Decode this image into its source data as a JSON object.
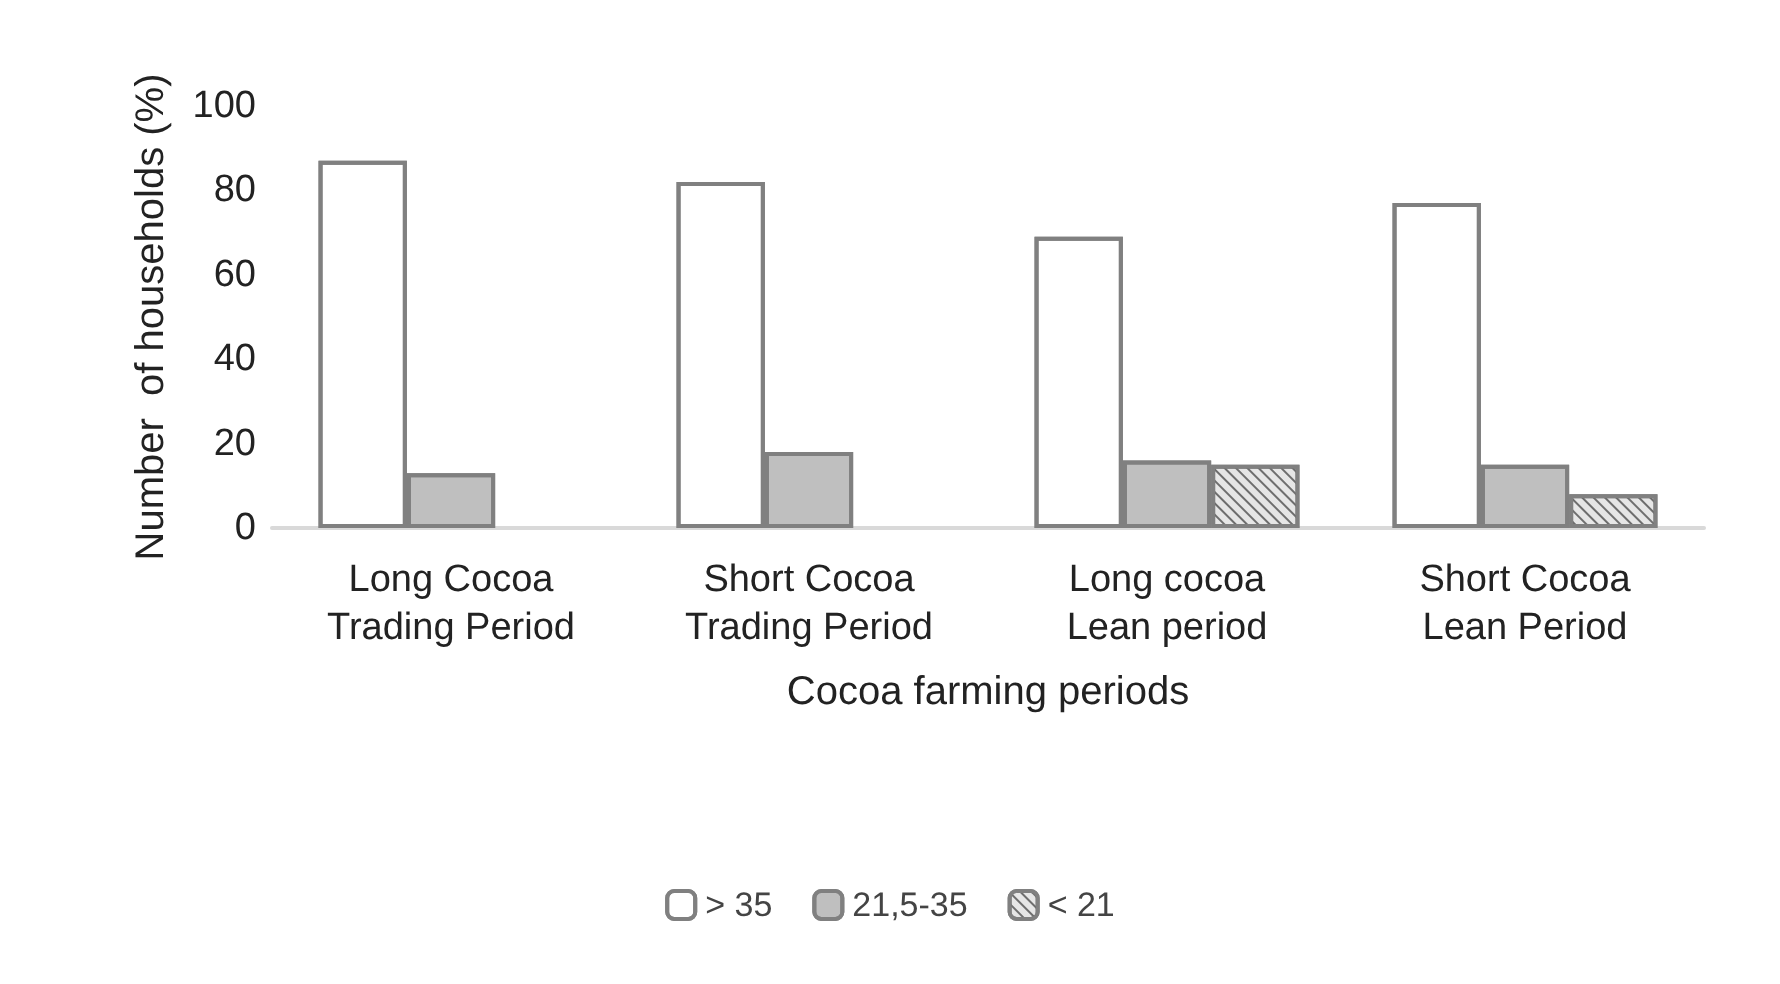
{
  "chart_data": {
    "type": "bar",
    "xlabel": "Cocoa farming periods",
    "ylabel": "Number  of households (%)",
    "categories": [
      "Long Cocoa\nTrading Period",
      "Short Cocoa\nTrading Period",
      "Long cocoa\nLean period",
      "Short Cocoa\nLean Period"
    ],
    "series": [
      {
        "name": "> 35",
        "color": "#ffffff",
        "values": [
          87,
          82,
          69,
          77
        ]
      },
      {
        "name": "21,5-35",
        "color": "#bfbfbf",
        "values": [
          13,
          18,
          16,
          15
        ]
      },
      {
        "name": "< 21",
        "color": "#e6e6e6",
        "values": [
          null,
          null,
          15,
          8
        ]
      }
    ],
    "ylim": [
      0,
      100
    ],
    "yticks": [
      0,
      20,
      40,
      60,
      80,
      100
    ],
    "grid": false,
    "legend": "bottom"
  }
}
